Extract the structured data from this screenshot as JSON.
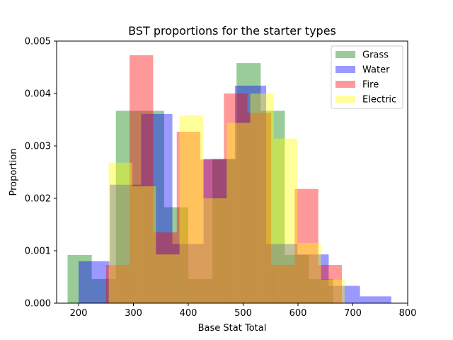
{
  "chart_data": {
    "type": "histogram",
    "title": "BST proportions for the starter types",
    "xlabel": "Base Stat Total",
    "ylabel": "Proportion",
    "xlim": [
      160,
      800
    ],
    "ylim": [
      0,
      0.005
    ],
    "xticks": [
      200,
      300,
      400,
      500,
      600,
      700,
      800
    ],
    "yticks": [
      0.0,
      0.001,
      0.002,
      0.003,
      0.004,
      0.005
    ],
    "xtick_labels": [
      "200",
      "300",
      "400",
      "500",
      "600",
      "700",
      "800"
    ],
    "ytick_labels": [
      "0.000",
      "0.001",
      "0.002",
      "0.003",
      "0.004",
      "0.005"
    ],
    "grid": false,
    "legend_position": "top-right",
    "series": [
      {
        "name": "Grass",
        "color": "#008000",
        "alpha": 0.4,
        "bins": [
          {
            "x0": 180,
            "x1": 224,
            "y": 0.00092
          },
          {
            "x0": 224,
            "x1": 268,
            "y": 0.00046
          },
          {
            "x0": 268,
            "x1": 312,
            "y": 0.00367
          },
          {
            "x0": 312,
            "x1": 356,
            "y": 0.00367
          },
          {
            "x0": 356,
            "x1": 400,
            "y": 0.00183
          },
          {
            "x0": 400,
            "x1": 444,
            "y": 0.00046
          },
          {
            "x0": 444,
            "x1": 488,
            "y": 0.00275
          },
          {
            "x0": 488,
            "x1": 532,
            "y": 0.00458
          },
          {
            "x0": 532,
            "x1": 576,
            "y": 0.00367
          },
          {
            "x0": 576,
            "x1": 620,
            "y": 0.00092
          },
          {
            "x0": 620,
            "x1": 664,
            "y": 0.00046
          }
        ]
      },
      {
        "name": "Water",
        "color": "#0000ff",
        "alpha": 0.4,
        "bins": [
          {
            "x0": 200,
            "x1": 257,
            "y": 0.0008
          },
          {
            "x0": 257,
            "x1": 314,
            "y": 0.00226
          },
          {
            "x0": 314,
            "x1": 371,
            "y": 0.00361
          },
          {
            "x0": 371,
            "x1": 428,
            "y": 0.00113
          },
          {
            "x0": 428,
            "x1": 485,
            "y": 0.00275
          },
          {
            "x0": 485,
            "x1": 542,
            "y": 0.00415
          },
          {
            "x0": 542,
            "x1": 599,
            "y": 0.00113
          },
          {
            "x0": 599,
            "x1": 656,
            "y": 0.00093
          },
          {
            "x0": 656,
            "x1": 713,
            "y": 0.00033
          },
          {
            "x0": 713,
            "x1": 770,
            "y": 0.00013
          }
        ]
      },
      {
        "name": "Fire",
        "color": "#ff0000",
        "alpha": 0.4,
        "bins": [
          {
            "x0": 250,
            "x1": 293,
            "y": 0.00073
          },
          {
            "x0": 293,
            "x1": 336,
            "y": 0.00473
          },
          {
            "x0": 336,
            "x1": 379,
            "y": 0.00135
          },
          {
            "x0": 379,
            "x1": 422,
            "y": 0.00327
          },
          {
            "x0": 422,
            "x1": 465,
            "y": 0.00274
          },
          {
            "x0": 465,
            "x1": 508,
            "y": 0.004
          },
          {
            "x0": 508,
            "x1": 551,
            "y": 0.00363
          },
          {
            "x0": 551,
            "x1": 594,
            "y": 0.00073
          },
          {
            "x0": 594,
            "x1": 637,
            "y": 0.00218
          },
          {
            "x0": 637,
            "x1": 680,
            "y": 0.00073
          }
        ]
      },
      {
        "name": "Electric",
        "color": "#ffff00",
        "alpha": 0.4,
        "bins": [
          {
            "x0": 255,
            "x1": 298,
            "y": 0.00268
          },
          {
            "x0": 298,
            "x1": 341,
            "y": 0.00223
          },
          {
            "x0": 341,
            "x1": 384,
            "y": 0.00093
          },
          {
            "x0": 384,
            "x1": 427,
            "y": 0.00358
          },
          {
            "x0": 427,
            "x1": 470,
            "y": 0.002
          },
          {
            "x0": 470,
            "x1": 513,
            "y": 0.00344
          },
          {
            "x0": 513,
            "x1": 556,
            "y": 0.004
          },
          {
            "x0": 556,
            "x1": 599,
            "y": 0.00314
          },
          {
            "x0": 599,
            "x1": 642,
            "y": 0.00115
          },
          {
            "x0": 642,
            "x1": 685,
            "y": 0.00045
          }
        ]
      }
    ]
  }
}
